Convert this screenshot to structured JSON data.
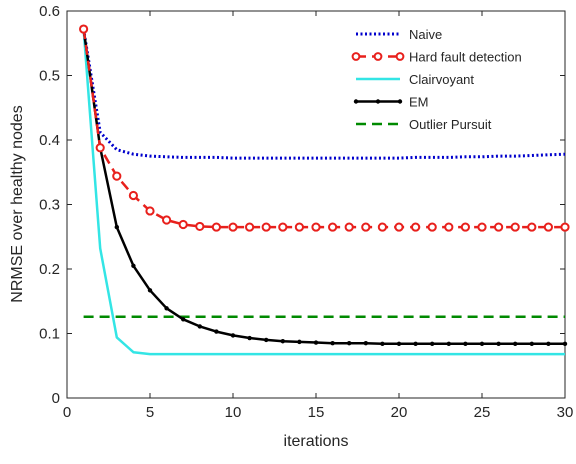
{
  "chart_data": {
    "type": "line",
    "title": "",
    "xlabel": "iterations",
    "ylabel": "NRMSE over healthy nodes",
    "xlim": [
      0,
      30
    ],
    "ylim": [
      0,
      0.6
    ],
    "xticks": [
      0,
      5,
      10,
      15,
      20,
      25,
      30
    ],
    "yticks": [
      0,
      0.1,
      0.2,
      0.3,
      0.4,
      0.5,
      0.6
    ],
    "xtick_labels": [
      "0",
      "5",
      "10",
      "15",
      "20",
      "25",
      "30"
    ],
    "ytick_labels": [
      "0",
      "0.1",
      "0.2",
      "0.3",
      "0.4",
      "0.5",
      "0.6"
    ],
    "grid": false,
    "legend_position": "top-right",
    "x": [
      1,
      2,
      3,
      4,
      5,
      6,
      7,
      8,
      9,
      10,
      11,
      12,
      13,
      14,
      15,
      16,
      17,
      18,
      19,
      20,
      21,
      22,
      23,
      24,
      25,
      26,
      27,
      28,
      29,
      30
    ],
    "series": [
      {
        "name": "Naive",
        "color": "#0000cc",
        "style": "dotted",
        "marker": "none",
        "values": [
          0.572,
          0.412,
          0.385,
          0.378,
          0.375,
          0.374,
          0.373,
          0.373,
          0.373,
          0.372,
          0.372,
          0.372,
          0.372,
          0.372,
          0.372,
          0.372,
          0.372,
          0.372,
          0.372,
          0.372,
          0.373,
          0.373,
          0.373,
          0.374,
          0.374,
          0.375,
          0.375,
          0.376,
          0.377,
          0.378
        ]
      },
      {
        "name": "Hard fault detection",
        "color": "#e8201c",
        "style": "dashed",
        "marker": "circle",
        "values": [
          0.572,
          0.388,
          0.344,
          0.314,
          0.29,
          0.276,
          0.269,
          0.266,
          0.265,
          0.265,
          0.265,
          0.265,
          0.265,
          0.265,
          0.265,
          0.265,
          0.265,
          0.265,
          0.265,
          0.265,
          0.265,
          0.265,
          0.265,
          0.265,
          0.265,
          0.265,
          0.265,
          0.265,
          0.265,
          0.265
        ]
      },
      {
        "name": "Clairvoyant",
        "color": "#33e5e5",
        "style": "solid",
        "marker": "none",
        "values": [
          0.572,
          0.232,
          0.094,
          0.071,
          0.068,
          0.068,
          0.068,
          0.068,
          0.068,
          0.068,
          0.068,
          0.068,
          0.068,
          0.068,
          0.068,
          0.068,
          0.068,
          0.068,
          0.068,
          0.068,
          0.068,
          0.068,
          0.068,
          0.068,
          0.068,
          0.068,
          0.068,
          0.068,
          0.068,
          0.068
        ]
      },
      {
        "name": "EM",
        "color": "#000000",
        "style": "solid",
        "marker": "dot",
        "values": [
          0.572,
          0.388,
          0.265,
          0.205,
          0.167,
          0.139,
          0.122,
          0.111,
          0.103,
          0.097,
          0.093,
          0.09,
          0.088,
          0.087,
          0.086,
          0.085,
          0.085,
          0.085,
          0.084,
          0.084,
          0.084,
          0.084,
          0.084,
          0.084,
          0.084,
          0.084,
          0.084,
          0.084,
          0.084,
          0.084
        ]
      },
      {
        "name": "Outlier Pursuit",
        "color": "#008a00",
        "style": "dashed",
        "marker": "none",
        "values": [
          0.126,
          0.126,
          0.126,
          0.126,
          0.126,
          0.126,
          0.126,
          0.126,
          0.126,
          0.126,
          0.126,
          0.126,
          0.126,
          0.126,
          0.126,
          0.126,
          0.126,
          0.126,
          0.126,
          0.126,
          0.126,
          0.126,
          0.126,
          0.126,
          0.126,
          0.126,
          0.126,
          0.126,
          0.126,
          0.126
        ]
      }
    ]
  }
}
